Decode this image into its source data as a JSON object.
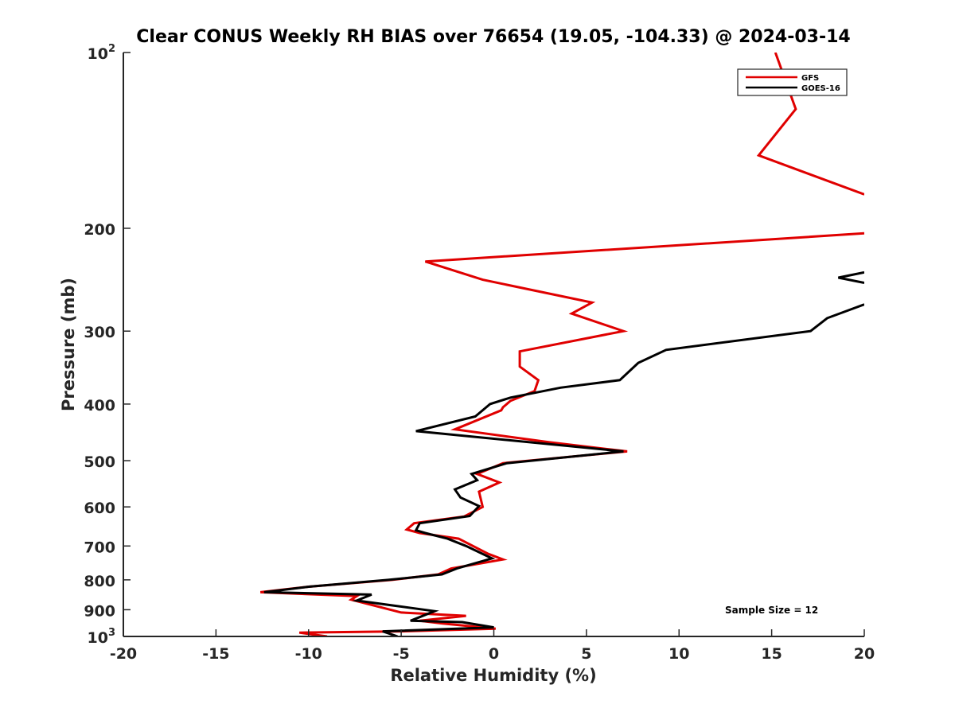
{
  "chart_data": {
    "type": "line",
    "title": "Clear CONUS Weekly RH BIAS over 76654 (19.05, -104.33) @ 2024-03-14",
    "xlabel": "Relative Humidity (%)",
    "ylabel": "Pressure (mb)",
    "xlim": [
      -20,
      20
    ],
    "ylim": [
      100,
      1000
    ],
    "y_scale": "log",
    "y_reversed": true,
    "grid": false,
    "legend_position": "top-right",
    "x_ticks": [
      "-20",
      "-15",
      "-10",
      "-5",
      "0",
      "5",
      "10",
      "15",
      "20"
    ],
    "y_ticks": [
      {
        "value": 100,
        "base": "10",
        "exp": "2"
      },
      {
        "value": 200,
        "label": "200"
      },
      {
        "value": 300,
        "label": "300"
      },
      {
        "value": 400,
        "label": "400"
      },
      {
        "value": 500,
        "label": "500"
      },
      {
        "value": 600,
        "label": "600"
      },
      {
        "value": 700,
        "label": "700"
      },
      {
        "value": 800,
        "label": "800"
      },
      {
        "value": 900,
        "label": "900"
      },
      {
        "value": 1000,
        "base": "10",
        "exp": "3"
      }
    ],
    "annotation": "Sample Size = 12",
    "series": [
      {
        "name": "GFS",
        "color": "#e00000",
        "points": [
          [
            15.2,
            100
          ],
          [
            16.3,
            125
          ],
          [
            14.3,
            150
          ],
          [
            20.0,
            175
          ],
          [
            null,
            null
          ],
          [
            20.0,
            204
          ],
          [
            -3.7,
            228
          ],
          [
            -0.6,
            245
          ],
          [
            5.3,
            268
          ],
          [
            4.2,
            280
          ],
          [
            7.0,
            300
          ],
          [
            1.4,
            325
          ],
          [
            1.4,
            345
          ],
          [
            2.4,
            364
          ],
          [
            2.2,
            380
          ],
          [
            0.9,
            395
          ],
          [
            0.5,
            405
          ],
          [
            0.4,
            410
          ],
          [
            -2.1,
            442
          ],
          [
            3.0,
            465
          ],
          [
            7.2,
            482
          ],
          [
            0.5,
            505
          ],
          [
            -0.9,
            527
          ],
          [
            0.3,
            545
          ],
          [
            -0.8,
            565
          ],
          [
            -0.6,
            600
          ],
          [
            -1.6,
            623
          ],
          [
            -4.3,
            640
          ],
          [
            -4.7,
            656
          ],
          [
            -4.0,
            665
          ],
          [
            -1.9,
            680
          ],
          [
            -0.3,
            722
          ],
          [
            0.5,
            738
          ],
          [
            -2.3,
            765
          ],
          [
            -3.0,
            783
          ],
          [
            -5.5,
            800
          ],
          [
            -10.0,
            822
          ],
          [
            -12.6,
            840
          ],
          [
            -7.4,
            853
          ],
          [
            -7.7,
            865
          ],
          [
            -5.0,
            910
          ],
          [
            -1.5,
            922
          ],
          [
            -4.0,
            940
          ],
          [
            -2.8,
            950
          ],
          [
            0.1,
            970
          ],
          [
            -5.0,
            980
          ],
          [
            -10.5,
            985
          ],
          [
            -9.0,
            1000
          ]
        ]
      },
      {
        "name": "GOES-16",
        "color": "#000000",
        "points": [
          [
            20.0,
            238
          ],
          [
            18.6,
            243
          ],
          [
            20.0,
            248
          ],
          [
            null,
            null
          ],
          [
            20.0,
            270
          ],
          [
            18.0,
            285
          ],
          [
            17.1,
            300
          ],
          [
            9.3,
            323
          ],
          [
            7.8,
            340
          ],
          [
            6.8,
            364
          ],
          [
            3.6,
            375
          ],
          [
            0.9,
            390
          ],
          [
            -0.2,
            400
          ],
          [
            -1.0,
            420
          ],
          [
            -4.2,
            445
          ],
          [
            7.0,
            482
          ],
          [
            0.7,
            505
          ],
          [
            -1.2,
            527
          ],
          [
            -0.9,
            540
          ],
          [
            -2.1,
            560
          ],
          [
            -1.8,
            578
          ],
          [
            -0.8,
            598
          ],
          [
            -1.3,
            622
          ],
          [
            -4.0,
            640
          ],
          [
            -4.2,
            658
          ],
          [
            -3.7,
            665
          ],
          [
            -2.5,
            680
          ],
          [
            -1.5,
            700
          ],
          [
            -0.1,
            735
          ],
          [
            -2.0,
            765
          ],
          [
            -2.8,
            783
          ],
          [
            -5.7,
            800
          ],
          [
            -10.0,
            822
          ],
          [
            -12.4,
            840
          ],
          [
            -6.6,
            848
          ],
          [
            -7.4,
            868
          ],
          [
            -3.2,
            905
          ],
          [
            -4.5,
            940
          ],
          [
            -1.7,
            945
          ],
          [
            0.0,
            965
          ],
          [
            -6.0,
            980
          ],
          [
            -5.2,
            1000
          ]
        ]
      }
    ]
  }
}
